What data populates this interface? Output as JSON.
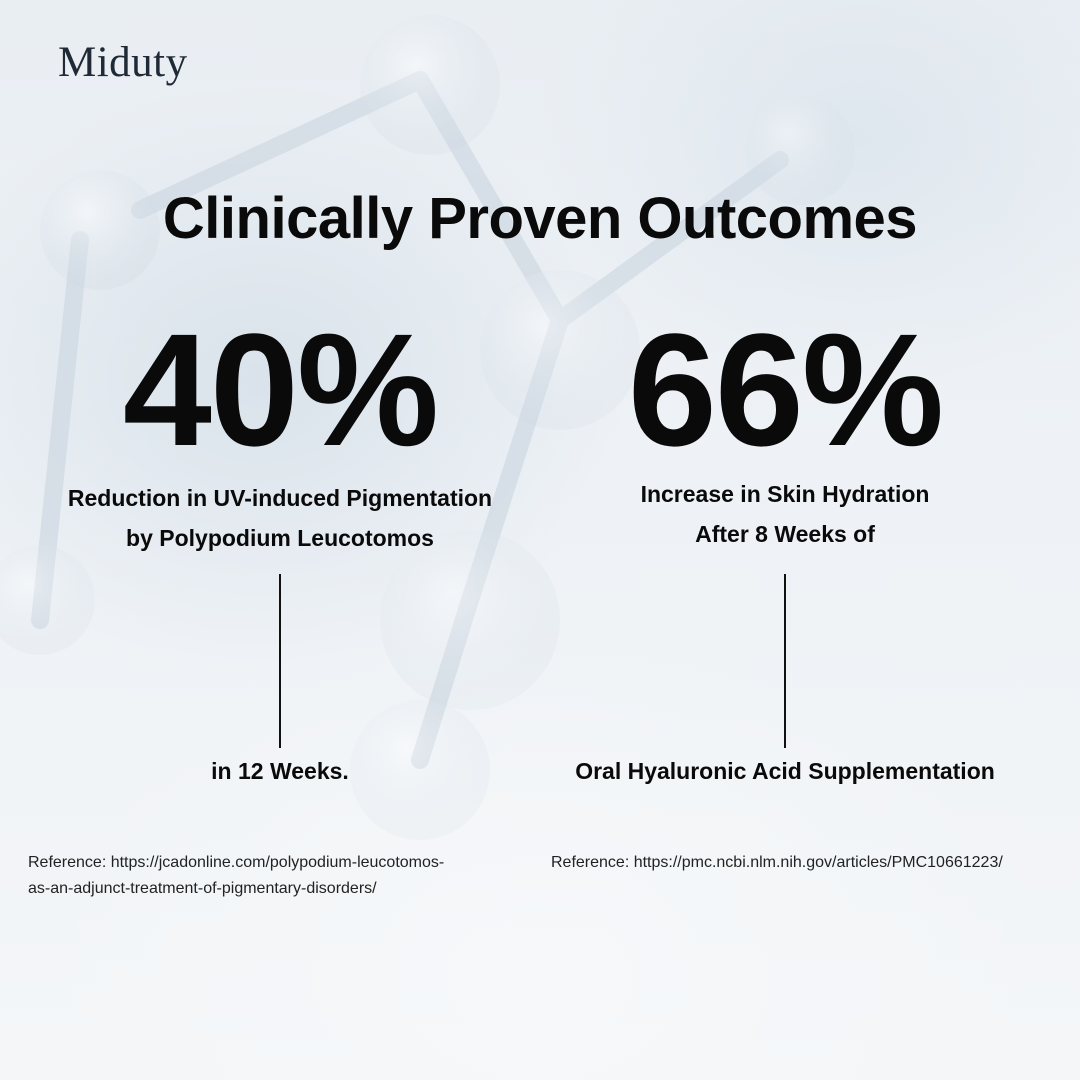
{
  "brand": {
    "name": "Miduty"
  },
  "headline": "Clinically Proven Outcomes",
  "stats": [
    {
      "value": "40%",
      "description_lines": [
        "Reduction in UV-induced Pigmentation",
        "by Polypodium Leucotomos"
      ],
      "tail": "in 12 Weeks.",
      "reference_lines": [
        "Reference: https://jcadonline.com/polypodium-leucotomos-",
        "as-an-adjunct-treatment-of-pigmentary-disorders/"
      ]
    },
    {
      "value": "66%",
      "description_lines": [
        "Increase in Skin Hydration",
        "After 8 Weeks of"
      ],
      "tail": "Oral Hyaluronic Acid Supplementation",
      "reference_lines": [
        "Reference: https://pmc.ncbi.nlm.nih.gov/articles/PMC10661223/"
      ]
    }
  ],
  "colors": {
    "text": "#0a0a0a",
    "brand": "#1f2a36",
    "background": "#eef2f6"
  }
}
